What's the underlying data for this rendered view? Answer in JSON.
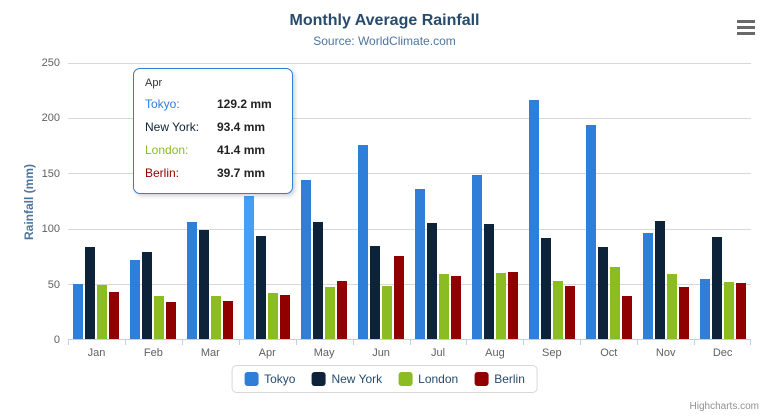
{
  "header": {
    "title": "Monthly Average Rainfall",
    "subtitle": "Source: WorldClimate.com"
  },
  "chart_data": {
    "type": "bar",
    "title": "Monthly Average Rainfall",
    "subtitle": "Source: WorldClimate.com",
    "categories": [
      "Jan",
      "Feb",
      "Mar",
      "Apr",
      "May",
      "Jun",
      "Jul",
      "Aug",
      "Sep",
      "Oct",
      "Nov",
      "Dec"
    ],
    "series": [
      {
        "name": "Tokyo",
        "color": "#2f7ed8",
        "values": [
          49.9,
          71.5,
          106.4,
          129.2,
          144.0,
          176.0,
          135.6,
          148.5,
          216.4,
          194.1,
          95.6,
          54.4
        ]
      },
      {
        "name": "New York",
        "color": "#0d233a",
        "values": [
          83.6,
          78.8,
          98.5,
          93.4,
          106.0,
          84.5,
          105.0,
          104.3,
          91.2,
          83.5,
          106.6,
          92.3
        ]
      },
      {
        "name": "London",
        "color": "#8bbc21",
        "values": [
          48.9,
          38.8,
          39.3,
          41.4,
          47.0,
          48.3,
          59.0,
          59.6,
          52.4,
          65.2,
          59.3,
          51.2
        ]
      },
      {
        "name": "Berlin",
        "color": "#910000",
        "values": [
          42.4,
          33.2,
          34.5,
          39.7,
          52.6,
          75.5,
          57.4,
          60.4,
          47.6,
          39.1,
          46.8,
          51.1
        ]
      }
    ],
    "xlabel": "",
    "ylabel": "Rainfall (mm)",
    "ylim": [
      0,
      250
    ],
    "ytick_step": 50,
    "grid": true,
    "legend_position": "bottom-center",
    "hovered": {
      "category": "Apr",
      "series": "Tokyo"
    }
  },
  "tooltip": {
    "header": "Apr",
    "rows": [
      {
        "series": "Tokyo",
        "value": "129.2 mm"
      },
      {
        "series": "New York",
        "value": "93.4 mm"
      },
      {
        "series": "London",
        "value": "41.4 mm"
      },
      {
        "series": "Berlin",
        "value": "39.7 mm"
      }
    ]
  },
  "credits": {
    "label": "Highcharts.com"
  }
}
